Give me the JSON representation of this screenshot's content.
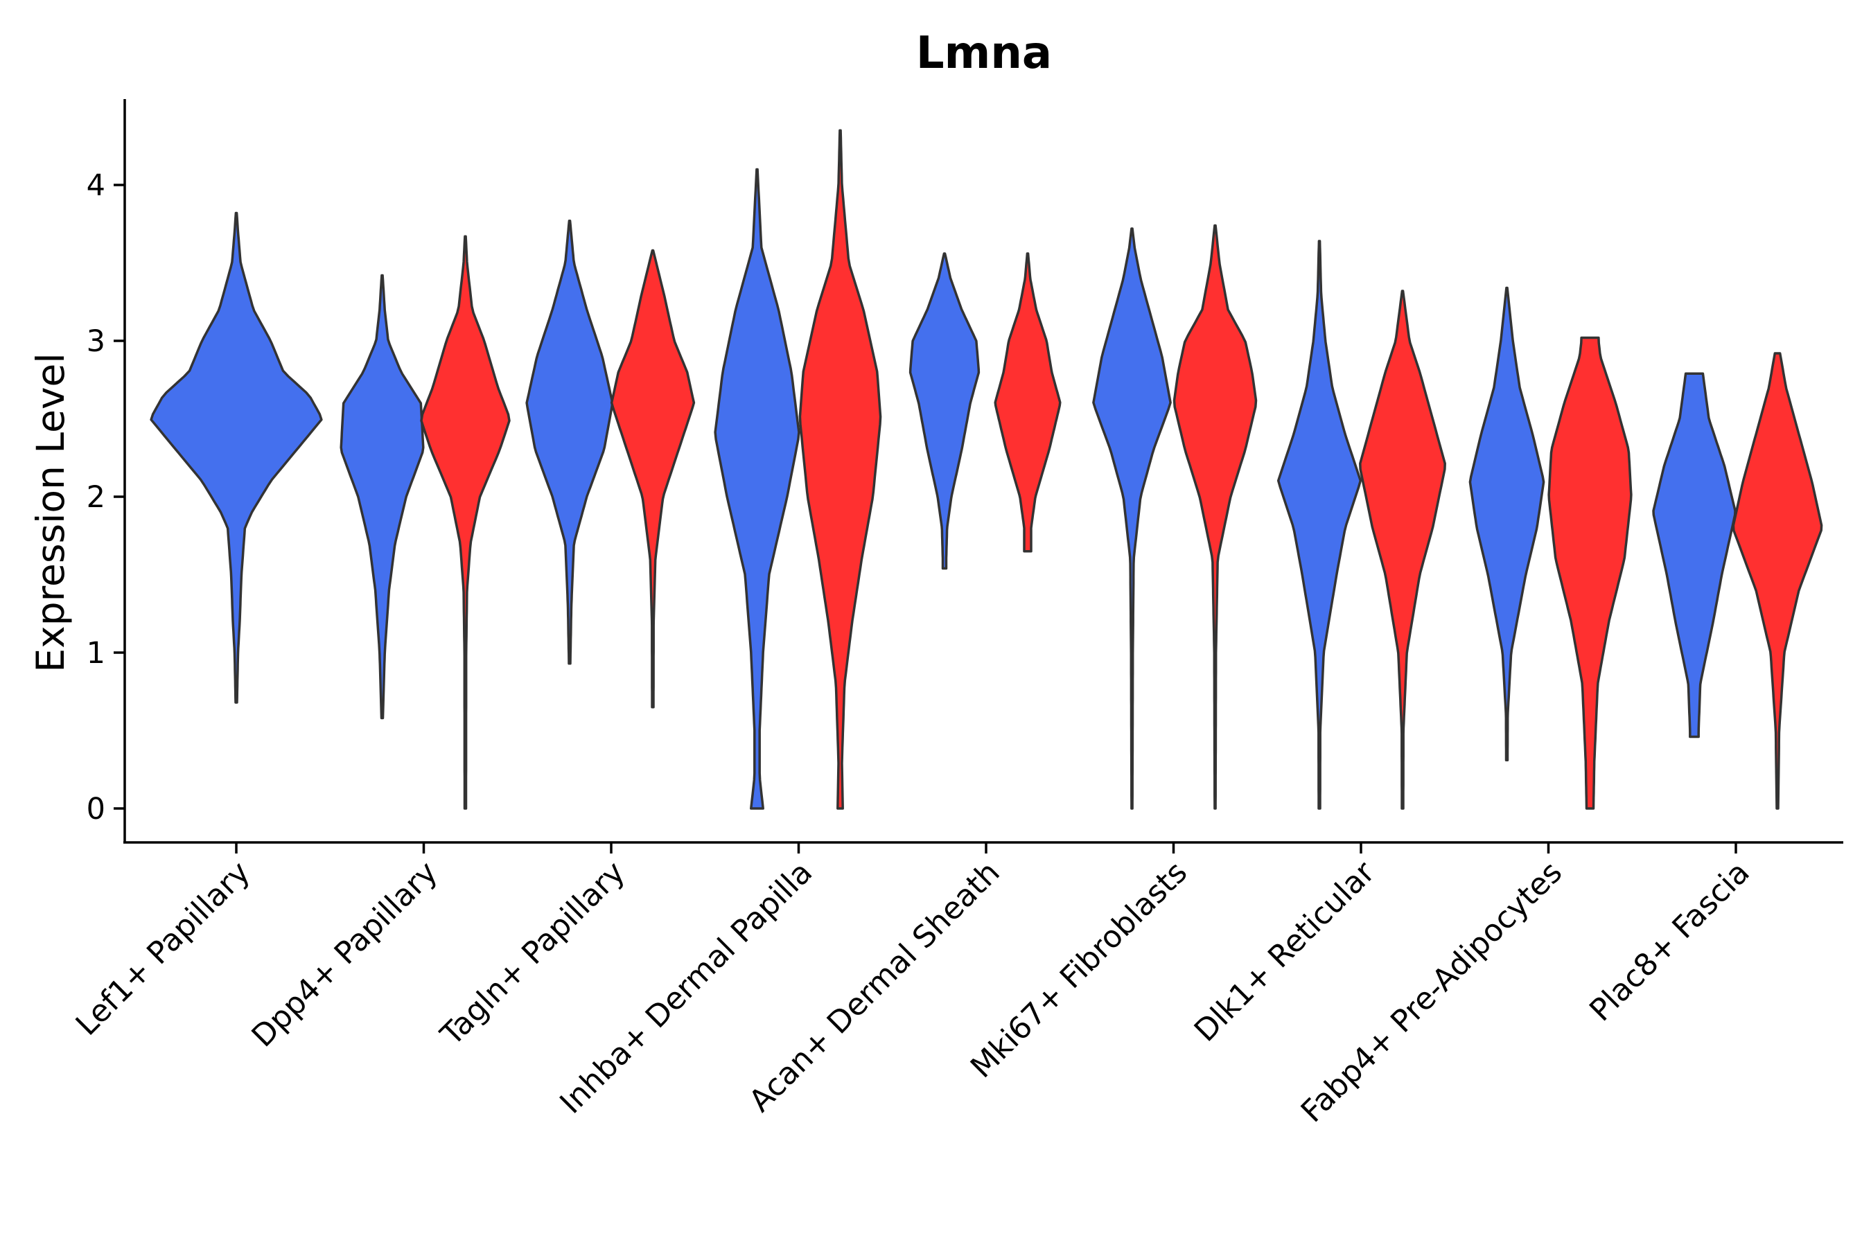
{
  "chart_data": {
    "type": "violin",
    "title": "Lmna",
    "ylabel": "Expression Level",
    "xlabel": "",
    "ylim": [
      -0.22,
      4.58
    ],
    "yticks": [
      0,
      1,
      2,
      3,
      4
    ],
    "colors": {
      "group_a": "#4470EE",
      "group_b": "#FF3030",
      "outline": "#333333"
    },
    "categories": [
      "Lef1+ Papillary",
      "Dpp4+ Papillary",
      "Tagln+ Papillary",
      "Inhba+ Dermal Papilla",
      "Acan+ Dermal Sheath",
      "Mki67+ Fibroblasts",
      "Dlk1+ Reticular",
      "Fabp4+ Pre-Adipocytes",
      "Plac8+ Fascia"
    ],
    "violins": [
      {
        "category": "Lef1+ Papillary",
        "group": "a",
        "min": 0.68,
        "max": 3.82,
        "mode": 2.5,
        "density": [
          [
            0.68,
            0.008
          ],
          [
            1.0,
            0.02
          ],
          [
            1.2,
            0.04
          ],
          [
            1.5,
            0.06
          ],
          [
            1.8,
            0.1
          ],
          [
            1.9,
            0.18
          ],
          [
            2.1,
            0.4
          ],
          [
            2.3,
            0.7
          ],
          [
            2.5,
            1.0
          ],
          [
            2.65,
            0.85
          ],
          [
            2.8,
            0.55
          ],
          [
            3.0,
            0.4
          ],
          [
            3.2,
            0.2
          ],
          [
            3.5,
            0.05
          ],
          [
            3.7,
            0.02
          ],
          [
            3.82,
            0.005
          ]
        ]
      },
      {
        "category": "Dpp4+ Papillary",
        "group": "a",
        "min": 0.58,
        "max": 3.42,
        "mode": 2.3,
        "density": [
          [
            0.58,
            0.008
          ],
          [
            1.0,
            0.03
          ],
          [
            1.4,
            0.08
          ],
          [
            1.7,
            0.15
          ],
          [
            2.0,
            0.28
          ],
          [
            2.3,
            0.48
          ],
          [
            2.6,
            0.45
          ],
          [
            2.8,
            0.22
          ],
          [
            3.0,
            0.07
          ],
          [
            3.2,
            0.03
          ],
          [
            3.42,
            0.005
          ]
        ]
      },
      {
        "category": "Dpp4+ Papillary",
        "group": "b",
        "min": 0.0,
        "max": 3.67,
        "mode": 2.5,
        "density": [
          [
            0.0,
            0.008
          ],
          [
            1.0,
            0.01
          ],
          [
            1.4,
            0.02
          ],
          [
            1.7,
            0.06
          ],
          [
            2.0,
            0.17
          ],
          [
            2.3,
            0.4
          ],
          [
            2.5,
            0.52
          ],
          [
            2.7,
            0.38
          ],
          [
            3.0,
            0.22
          ],
          [
            3.2,
            0.08
          ],
          [
            3.5,
            0.02
          ],
          [
            3.67,
            0.005
          ]
        ]
      },
      {
        "category": "Tagln+ Papillary",
        "group": "a",
        "min": 0.93,
        "max": 3.77,
        "mode": 2.6,
        "density": [
          [
            0.93,
            0.008
          ],
          [
            1.3,
            0.02
          ],
          [
            1.7,
            0.05
          ],
          [
            2.0,
            0.2
          ],
          [
            2.3,
            0.4
          ],
          [
            2.6,
            0.5
          ],
          [
            2.9,
            0.38
          ],
          [
            3.2,
            0.2
          ],
          [
            3.5,
            0.05
          ],
          [
            3.77,
            0.005
          ]
        ]
      },
      {
        "category": "Tagln+ Papillary",
        "group": "b",
        "min": 0.65,
        "max": 3.58,
        "mode": 2.6,
        "density": [
          [
            0.65,
            0.008
          ],
          [
            1.2,
            0.01
          ],
          [
            1.6,
            0.03
          ],
          [
            2.0,
            0.12
          ],
          [
            2.3,
            0.3
          ],
          [
            2.6,
            0.48
          ],
          [
            2.8,
            0.4
          ],
          [
            3.0,
            0.25
          ],
          [
            3.3,
            0.13
          ],
          [
            3.58,
            0.005
          ]
        ]
      },
      {
        "category": "Inhba+ Dermal Papilla",
        "group": "a",
        "min": 0.0,
        "max": 4.1,
        "mode": 2.4,
        "density": [
          [
            0.0,
            0.07
          ],
          [
            0.05,
            0.06
          ],
          [
            0.2,
            0.03
          ],
          [
            0.5,
            0.03
          ],
          [
            1.0,
            0.07
          ],
          [
            1.5,
            0.14
          ],
          [
            2.0,
            0.35
          ],
          [
            2.4,
            0.49
          ],
          [
            2.8,
            0.4
          ],
          [
            3.2,
            0.25
          ],
          [
            3.6,
            0.05
          ],
          [
            4.1,
            0.005
          ]
        ]
      },
      {
        "category": "Inhba+ Dermal Papilla",
        "group": "b",
        "min": 0.0,
        "max": 4.35,
        "mode": 2.5,
        "density": [
          [
            0.0,
            0.03
          ],
          [
            0.3,
            0.02
          ],
          [
            0.8,
            0.05
          ],
          [
            1.2,
            0.14
          ],
          [
            1.6,
            0.25
          ],
          [
            2.0,
            0.38
          ],
          [
            2.5,
            0.47
          ],
          [
            2.8,
            0.43
          ],
          [
            3.2,
            0.27
          ],
          [
            3.5,
            0.1
          ],
          [
            4.0,
            0.02
          ],
          [
            4.35,
            0.005
          ]
        ]
      },
      {
        "category": "Acan+ Dermal Sheath",
        "group": "a",
        "min": 1.54,
        "max": 3.56,
        "mode": 2.9,
        "density": [
          [
            1.54,
            0.02
          ],
          [
            1.6,
            0.02
          ],
          [
            1.8,
            0.03
          ],
          [
            2.0,
            0.08
          ],
          [
            2.3,
            0.2
          ],
          [
            2.6,
            0.3
          ],
          [
            2.8,
            0.4
          ],
          [
            3.0,
            0.37
          ],
          [
            3.2,
            0.2
          ],
          [
            3.4,
            0.07
          ],
          [
            3.56,
            0.005
          ]
        ]
      },
      {
        "category": "Acan+ Dermal Sheath",
        "group": "b",
        "min": 1.65,
        "max": 3.56,
        "mode": 2.6,
        "density": [
          [
            1.65,
            0.04
          ],
          [
            1.8,
            0.04
          ],
          [
            2.0,
            0.09
          ],
          [
            2.3,
            0.25
          ],
          [
            2.6,
            0.38
          ],
          [
            2.8,
            0.28
          ],
          [
            3.0,
            0.22
          ],
          [
            3.2,
            0.1
          ],
          [
            3.4,
            0.03
          ],
          [
            3.56,
            0.005
          ]
        ]
      },
      {
        "category": "Mki67+ Fibroblasts",
        "group": "a",
        "min": 0.0,
        "max": 3.72,
        "mode": 2.6,
        "density": [
          [
            0.0,
            0.005
          ],
          [
            1.0,
            0.01
          ],
          [
            1.6,
            0.02
          ],
          [
            2.0,
            0.1
          ],
          [
            2.3,
            0.25
          ],
          [
            2.6,
            0.45
          ],
          [
            2.9,
            0.35
          ],
          [
            3.2,
            0.2
          ],
          [
            3.4,
            0.1
          ],
          [
            3.6,
            0.03
          ],
          [
            3.72,
            0.005
          ]
        ]
      },
      {
        "category": "Mki67+ Fibroblasts",
        "group": "b",
        "min": 0.0,
        "max": 3.74,
        "mode": 2.6,
        "density": [
          [
            0.0,
            0.005
          ],
          [
            1.0,
            0.01
          ],
          [
            1.6,
            0.03
          ],
          [
            2.0,
            0.18
          ],
          [
            2.3,
            0.35
          ],
          [
            2.6,
            0.48
          ],
          [
            2.8,
            0.43
          ],
          [
            3.0,
            0.35
          ],
          [
            3.2,
            0.15
          ],
          [
            3.5,
            0.05
          ],
          [
            3.74,
            0.005
          ]
        ]
      },
      {
        "category": "Dlk1+ Reticular",
        "group": "a",
        "min": 0.0,
        "max": 3.64,
        "mode": 2.1,
        "density": [
          [
            0.0,
            0.008
          ],
          [
            0.5,
            0.01
          ],
          [
            1.0,
            0.05
          ],
          [
            1.5,
            0.2
          ],
          [
            1.8,
            0.3
          ],
          [
            2.1,
            0.48
          ],
          [
            2.4,
            0.3
          ],
          [
            2.7,
            0.15
          ],
          [
            3.0,
            0.07
          ],
          [
            3.3,
            0.02
          ],
          [
            3.64,
            0.005
          ]
        ]
      },
      {
        "category": "Dlk1+ Reticular",
        "group": "b",
        "min": 0.0,
        "max": 3.32,
        "mode": 2.2,
        "density": [
          [
            0.0,
            0.008
          ],
          [
            0.5,
            0.01
          ],
          [
            1.0,
            0.05
          ],
          [
            1.5,
            0.2
          ],
          [
            1.8,
            0.35
          ],
          [
            2.2,
            0.5
          ],
          [
            2.5,
            0.35
          ],
          [
            2.8,
            0.2
          ],
          [
            3.0,
            0.08
          ],
          [
            3.32,
            0.005
          ]
        ]
      },
      {
        "category": "Fabp4+ Pre-Adipocytes",
        "group": "a",
        "min": 0.31,
        "max": 3.34,
        "mode": 2.0,
        "density": [
          [
            0.31,
            0.008
          ],
          [
            0.6,
            0.01
          ],
          [
            1.0,
            0.05
          ],
          [
            1.5,
            0.22
          ],
          [
            1.8,
            0.35
          ],
          [
            2.1,
            0.43
          ],
          [
            2.4,
            0.3
          ],
          [
            2.7,
            0.15
          ],
          [
            3.0,
            0.07
          ],
          [
            3.34,
            0.005
          ]
        ]
      },
      {
        "category": "Fabp4+ Pre-Adipocytes",
        "group": "b",
        "min": 0.0,
        "max": 3.02,
        "mode": 2.0,
        "density": [
          [
            0.0,
            0.04
          ],
          [
            0.3,
            0.05
          ],
          [
            0.8,
            0.09
          ],
          [
            1.2,
            0.22
          ],
          [
            1.6,
            0.4
          ],
          [
            2.0,
            0.48
          ],
          [
            2.3,
            0.45
          ],
          [
            2.6,
            0.3
          ],
          [
            2.9,
            0.12
          ],
          [
            3.0,
            0.1
          ],
          [
            3.02,
            0.1
          ]
        ]
      },
      {
        "category": "Plac8+ Fascia",
        "group": "a",
        "min": 0.46,
        "max": 2.79,
        "mode": 1.9,
        "density": [
          [
            0.46,
            0.05
          ],
          [
            0.5,
            0.05
          ],
          [
            0.8,
            0.07
          ],
          [
            1.2,
            0.22
          ],
          [
            1.5,
            0.32
          ],
          [
            1.9,
            0.48
          ],
          [
            2.2,
            0.35
          ],
          [
            2.5,
            0.17
          ],
          [
            2.79,
            0.1
          ]
        ]
      },
      {
        "category": "Plac8+ Fascia",
        "group": "b",
        "min": 0.0,
        "max": 2.92,
        "mode": 1.8,
        "density": [
          [
            0.0,
            0.008
          ],
          [
            0.5,
            0.02
          ],
          [
            1.0,
            0.08
          ],
          [
            1.4,
            0.25
          ],
          [
            1.8,
            0.52
          ],
          [
            2.1,
            0.4
          ],
          [
            2.4,
            0.25
          ],
          [
            2.7,
            0.1
          ],
          [
            2.92,
            0.03
          ]
        ]
      }
    ]
  }
}
